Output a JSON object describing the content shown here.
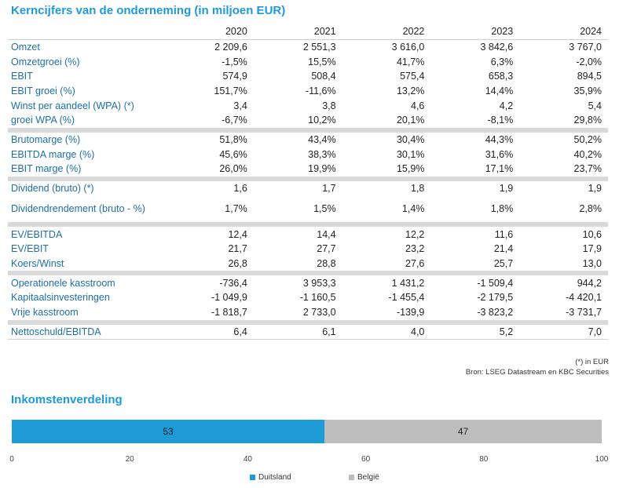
{
  "title": "Kerncijfers van de onderneming (in miljoen EUR)",
  "years": [
    "2020",
    "2021",
    "2022",
    "2023",
    "2024"
  ],
  "groups": [
    [
      {
        "label": "Omzet",
        "values": [
          "2 209,6",
          "2 551,3",
          "3 616,0",
          "3 842,6",
          "3 767,0"
        ]
      },
      {
        "label": "Omzetgroei (%)",
        "values": [
          "-1,5%",
          "15,5%",
          "41,7%",
          "6,3%",
          "-2,0%"
        ]
      },
      {
        "label": "EBIT",
        "values": [
          "574,9",
          "508,4",
          "575,4",
          "658,3",
          "894,5"
        ]
      },
      {
        "label": "EBIT groei (%)",
        "values": [
          "151,7%",
          "-11,6%",
          "13,2%",
          "14,4%",
          "35,9%"
        ]
      },
      {
        "label": "Winst per aandeel (WPA) (*)",
        "values": [
          "3,4",
          "3,8",
          "4,6",
          "4,2",
          "5,4"
        ]
      },
      {
        "label": "groei WPA (%)",
        "values": [
          "-6,7%",
          "10,2%",
          "20,1%",
          "-8,1%",
          "29,8%"
        ]
      }
    ],
    [
      {
        "label": "Brutomarge (%)",
        "values": [
          "51,8%",
          "43,4%",
          "30,4%",
          "44,3%",
          "50,2%"
        ]
      },
      {
        "label": "EBITDA marge (%)",
        "values": [
          "45,6%",
          "38,3%",
          "30,1%",
          "31,6%",
          "40,2%"
        ]
      },
      {
        "label": "EBIT marge (%)",
        "values": [
          "26,0%",
          "19,9%",
          "15,9%",
          "17,1%",
          "23,7%"
        ]
      }
    ],
    [
      {
        "label": "Dividend (bruto) (*)",
        "values": [
          "1,6",
          "1,7",
          "1,8",
          "1,9",
          "1,9"
        ]
      },
      {
        "label": "Dividendrendement (bruto - %)",
        "values": [
          "1,7%",
          "1,5%",
          "1,4%",
          "1,8%",
          "2,8%"
        ],
        "tall": true
      }
    ],
    [
      {
        "label": "EV/EBITDA",
        "values": [
          "12,4",
          "14,4",
          "12,2",
          "11,6",
          "10,6"
        ]
      },
      {
        "label": "EV/EBIT",
        "values": [
          "21,7",
          "27,7",
          "23,2",
          "21,4",
          "17,9"
        ]
      },
      {
        "label": "Koers/Winst",
        "values": [
          "26,8",
          "28,8",
          "27,6",
          "25,7",
          "13,0"
        ]
      }
    ],
    [
      {
        "label": "Operationele kasstroom",
        "values": [
          "-736,4",
          "3 953,3",
          "1 431,2",
          "-1 509,4",
          "944,2"
        ]
      },
      {
        "label": "Kapitaalsinvesteringen",
        "values": [
          "-1 049,9",
          "-1 160,5",
          "-1 455,4",
          "-2 179,5",
          "-4 420,1"
        ]
      },
      {
        "label": "Vrije kasstroom",
        "values": [
          "-1 818,7",
          "2 733,0",
          "-139,9",
          "-3 823,2",
          "-3 731,7"
        ]
      }
    ],
    [
      {
        "label": "Nettoschuld/EBITDA",
        "values": [
          "6,4",
          "6,1",
          "4,0",
          "5,2",
          "7,0"
        ]
      }
    ]
  ],
  "footnote": "(*) in EUR",
  "source": "Bron: LSEG Datastream en KBC Securities",
  "chart_data": {
    "type": "bar",
    "title": "Inkomstenverdeling",
    "orientation": "horizontal-stacked",
    "series": [
      {
        "name": "Duitsland",
        "values": [
          53
        ],
        "color": "#1e9ad6"
      },
      {
        "name": "België",
        "values": [
          47
        ],
        "color": "#bdbdbd"
      }
    ],
    "xlim": [
      0,
      100
    ],
    "xticks": [
      "0",
      "20",
      "40",
      "60",
      "80",
      "100"
    ],
    "legend": "bottom"
  }
}
